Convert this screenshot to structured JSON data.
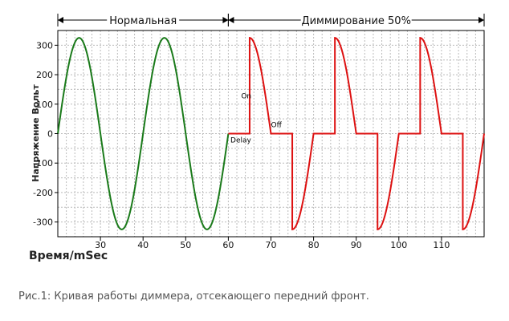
{
  "chart_data": {
    "type": "line",
    "xlabel": "Время/mSec",
    "ylabel": "Напряжение Вольт",
    "xlim": [
      20,
      120
    ],
    "ylim": [
      -350,
      350
    ],
    "x_ticks": [
      30,
      40,
      50,
      60,
      70,
      80,
      90,
      100,
      110
    ],
    "y_ticks": [
      300,
      200,
      100,
      0,
      -100,
      -200,
      -300
    ],
    "grid": true,
    "amplitude": 325,
    "period_ms": 20,
    "sections": [
      {
        "label": "Нормальная",
        "x_range": [
          20,
          60
        ]
      },
      {
        "label": "Диммирование 50%",
        "x_range": [
          60,
          120
        ]
      }
    ],
    "series": [
      {
        "color": "#1a7a1a",
        "x_range": [
          20,
          60
        ],
        "mode": "full-sine"
      },
      {
        "color": "#dd1111",
        "x_range": [
          60,
          120
        ],
        "mode": "leading-edge-50"
      }
    ],
    "annotations": [
      {
        "text": "On",
        "x": 63,
        "y": 120
      },
      {
        "text": "Off",
        "x": 70,
        "y": 22
      },
      {
        "text": "Delay",
        "x": 60.5,
        "y": -30
      }
    ]
  },
  "caption": "Рис.1: Кривая работы диммера, отсекающего передний фронт.",
  "colors": {
    "grid": "#bbbbbb",
    "frame": "#000000",
    "normal": "#1a7a1a",
    "dimmed": "#dd1111"
  }
}
